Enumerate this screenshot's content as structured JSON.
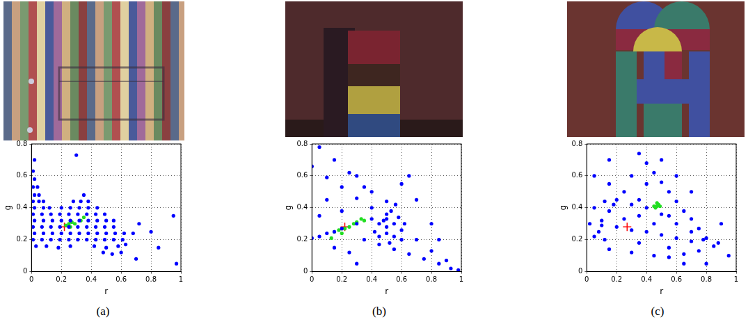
{
  "chart_data": [
    {
      "type": "scatter",
      "caption": "(a)",
      "x_label": "r",
      "y_label": "g",
      "xlim": [
        0,
        1
      ],
      "ylim": [
        0,
        0.8
      ],
      "xticks": [
        0,
        0.2,
        0.4,
        0.6,
        0.8,
        1
      ],
      "yticks": [
        0,
        0.2,
        0.4,
        0.6,
        0.8
      ],
      "grid": true,
      "series": [
        {
          "color": "#0000ff",
          "marker": "dot",
          "points": [
            [
              0.48,
              0.12
            ],
            [
              0.54,
              0.11
            ],
            [
              0.6,
              0.12
            ],
            [
              0.03,
              0.16
            ],
            [
              0.1,
              0.16
            ],
            [
              0.18,
              0.15
            ],
            [
              0.26,
              0.16
            ],
            [
              0.42,
              0.16
            ],
            [
              0.5,
              0.15
            ],
            [
              0.58,
              0.16
            ],
            [
              0.63,
              0.17
            ],
            [
              0.01,
              0.2
            ],
            [
              0.07,
              0.2
            ],
            [
              0.13,
              0.2
            ],
            [
              0.19,
              0.2
            ],
            [
              0.25,
              0.2
            ],
            [
              0.31,
              0.2
            ],
            [
              0.37,
              0.2
            ],
            [
              0.43,
              0.2
            ],
            [
              0.49,
              0.2
            ],
            [
              0.55,
              0.2
            ],
            [
              0.61,
              0.2
            ],
            [
              0.02,
              0.24
            ],
            [
              0.08,
              0.24
            ],
            [
              0.14,
              0.24
            ],
            [
              0.2,
              0.24
            ],
            [
              0.26,
              0.24
            ],
            [
              0.32,
              0.24
            ],
            [
              0.38,
              0.24
            ],
            [
              0.44,
              0.24
            ],
            [
              0.5,
              0.24
            ],
            [
              0.56,
              0.24
            ],
            [
              0.62,
              0.24
            ],
            [
              0.68,
              0.24
            ],
            [
              0.01,
              0.28
            ],
            [
              0.07,
              0.28
            ],
            [
              0.13,
              0.28
            ],
            [
              0.19,
              0.28
            ],
            [
              0.25,
              0.28
            ],
            [
              0.31,
              0.28
            ],
            [
              0.37,
              0.28
            ],
            [
              0.43,
              0.28
            ],
            [
              0.49,
              0.28
            ],
            [
              0.55,
              0.28
            ],
            [
              0.02,
              0.32
            ],
            [
              0.08,
              0.32
            ],
            [
              0.14,
              0.32
            ],
            [
              0.2,
              0.32
            ],
            [
              0.26,
              0.32
            ],
            [
              0.32,
              0.32
            ],
            [
              0.38,
              0.32
            ],
            [
              0.44,
              0.32
            ],
            [
              0.5,
              0.32
            ],
            [
              0.55,
              0.32
            ],
            [
              0.01,
              0.36
            ],
            [
              0.07,
              0.36
            ],
            [
              0.13,
              0.36
            ],
            [
              0.19,
              0.36
            ],
            [
              0.25,
              0.36
            ],
            [
              0.31,
              0.36
            ],
            [
              0.37,
              0.36
            ],
            [
              0.43,
              0.36
            ],
            [
              0.49,
              0.36
            ],
            [
              0.02,
              0.4
            ],
            [
              0.08,
              0.4
            ],
            [
              0.12,
              0.4
            ],
            [
              0.2,
              0.4
            ],
            [
              0.26,
              0.4
            ],
            [
              0.32,
              0.4
            ],
            [
              0.38,
              0.4
            ],
            [
              0.44,
              0.4
            ],
            [
              0.01,
              0.44
            ],
            [
              0.05,
              0.44
            ],
            [
              0.08,
              0.44
            ],
            [
              0.28,
              0.44
            ],
            [
              0.33,
              0.44
            ],
            [
              0.38,
              0.44
            ],
            [
              0.02,
              0.48
            ],
            [
              0.05,
              0.48
            ],
            [
              0.35,
              0.48
            ],
            [
              0.01,
              0.53
            ],
            [
              0.04,
              0.53
            ],
            [
              0.02,
              0.58
            ],
            [
              0.01,
              0.63
            ],
            [
              0.02,
              0.7
            ],
            [
              0.3,
              0.73
            ],
            [
              0.95,
              0.35
            ],
            [
              0.97,
              0.05
            ],
            [
              0.8,
              0.25
            ],
            [
              0.72,
              0.3
            ],
            [
              0.85,
              0.15
            ],
            [
              0.7,
              0.08
            ]
          ]
        },
        {
          "color": "#22dd22",
          "marker": "dot",
          "points": [
            [
              0.23,
              0.29
            ],
            [
              0.25,
              0.3
            ],
            [
              0.27,
              0.31
            ],
            [
              0.29,
              0.3
            ],
            [
              0.26,
              0.28
            ],
            [
              0.33,
              0.32
            ],
            [
              0.35,
              0.34
            ]
          ]
        },
        {
          "color": "#ff0000",
          "marker": "plus",
          "points": [
            [
              0.22,
              0.28
            ]
          ]
        }
      ]
    },
    {
      "type": "scatter",
      "caption": "(b)",
      "x_label": "r",
      "y_label": "g",
      "xlim": [
        0,
        1
      ],
      "ylim": [
        0,
        0.8
      ],
      "xticks": [
        0,
        0.2,
        0.4,
        0.6,
        0.8,
        1
      ],
      "yticks": [
        0,
        0.2,
        0.4,
        0.6,
        0.8
      ],
      "grid": true,
      "series": [
        {
          "color": "#0000ff",
          "marker": "dot",
          "points": [
            [
              0,
              0.66
            ],
            [
              0.1,
              0.59
            ],
            [
              0.2,
              0.53
            ],
            [
              0.3,
              0.46
            ],
            [
              0.4,
              0.4
            ],
            [
              0.5,
              0.33
            ],
            [
              0.6,
              0.26
            ],
            [
              0.7,
              0.2
            ],
            [
              0.8,
              0.13
            ],
            [
              0.9,
              0.07
            ],
            [
              0.98,
              0.01
            ],
            [
              0.05,
              0.78
            ],
            [
              0.15,
              0.7
            ],
            [
              0.25,
              0.62
            ],
            [
              0.35,
              0.53
            ],
            [
              0,
              0.21
            ],
            [
              0.05,
              0.22
            ],
            [
              0.1,
              0.24
            ],
            [
              0.15,
              0.25
            ],
            [
              0.2,
              0.27
            ],
            [
              0.3,
              0.3
            ],
            [
              0.4,
              0.33
            ],
            [
              0.5,
              0.36
            ],
            [
              0.35,
              0.2
            ],
            [
              0.45,
              0.17
            ],
            [
              0.55,
              0.14
            ],
            [
              0.65,
              0.11
            ],
            [
              0.75,
              0.08
            ],
            [
              0.85,
              0.05
            ],
            [
              0.93,
              0.02
            ],
            [
              0.45,
              0.3
            ],
            [
              0.5,
              0.28
            ],
            [
              0.55,
              0.3
            ],
            [
              0.5,
              0.24
            ],
            [
              0.45,
              0.22
            ],
            [
              0.55,
              0.22
            ],
            [
              0.6,
              0.2
            ],
            [
              0.52,
              0.18
            ],
            [
              0.42,
              0.25
            ],
            [
              0.58,
              0.34
            ],
            [
              0.62,
              0.3
            ],
            [
              0.48,
              0.32
            ],
            [
              0.53,
              0.38
            ],
            [
              0.56,
              0.42
            ],
            [
              0.5,
              0.44
            ],
            [
              0.1,
              0.45
            ],
            [
              0.2,
              0.38
            ],
            [
              0.3,
              0.6
            ],
            [
              0.6,
              0.55
            ],
            [
              0.7,
              0.45
            ],
            [
              0.65,
              0.6
            ],
            [
              0.15,
              0.15
            ],
            [
              0.25,
              0.12
            ],
            [
              0.3,
              0.05
            ],
            [
              0.05,
              0.35
            ],
            [
              0.4,
              0.5
            ],
            [
              0.8,
              0.3
            ],
            [
              0.85,
              0.2
            ]
          ]
        },
        {
          "color": "#22dd22",
          "marker": "dot",
          "points": [
            [
              0.15,
              0.25
            ],
            [
              0.18,
              0.26
            ],
            [
              0.22,
              0.27
            ],
            [
              0.25,
              0.28
            ],
            [
              0.28,
              0.3
            ],
            [
              0.3,
              0.31
            ],
            [
              0.33,
              0.33
            ],
            [
              0.2,
              0.24
            ],
            [
              0.13,
              0.21
            ],
            [
              0.35,
              0.32
            ]
          ]
        },
        {
          "color": "#ff0000",
          "marker": "plus",
          "points": [
            [
              0.22,
              0.28
            ]
          ]
        }
      ]
    },
    {
      "type": "scatter",
      "caption": "(c)",
      "x_label": "r",
      "y_label": "g",
      "xlim": [
        0,
        1
      ],
      "ylim": [
        0,
        0.8
      ],
      "xticks": [
        0,
        0.2,
        0.4,
        0.6,
        0.8,
        1
      ],
      "yticks": [
        0,
        0.2,
        0.4,
        0.6,
        0.8
      ],
      "grid": true,
      "series": [
        {
          "color": "#0000ff",
          "marker": "dot",
          "points": [
            [
              0.35,
              0.74
            ],
            [
              0.4,
              0.68
            ],
            [
              0.45,
              0.62
            ],
            [
              0.5,
              0.56
            ],
            [
              0.55,
              0.5
            ],
            [
              0.6,
              0.44
            ],
            [
              0.65,
              0.38
            ],
            [
              0.7,
              0.33
            ],
            [
              0.75,
              0.27
            ],
            [
              0.8,
              0.21
            ],
            [
              0.85,
              0.16
            ],
            [
              0.2,
              0.45
            ],
            [
              0.3,
              0.42
            ],
            [
              0.4,
              0.4
            ],
            [
              0.5,
              0.36
            ],
            [
              0.6,
              0.3
            ],
            [
              0.7,
              0.25
            ],
            [
              0.78,
              0.2
            ],
            [
              0.02,
              0.3
            ],
            [
              0.1,
              0.29
            ],
            [
              0.2,
              0.28
            ],
            [
              0.3,
              0.26
            ],
            [
              0.4,
              0.25
            ],
            [
              0.5,
              0.23
            ],
            [
              0.6,
              0.21
            ],
            [
              0.7,
              0.19
            ],
            [
              0.15,
              0.14
            ],
            [
              0.3,
              0.12
            ],
            [
              0.45,
              0.1
            ],
            [
              0.55,
              0.09
            ],
            [
              0.65,
              0.11
            ],
            [
              0.75,
              0.13
            ],
            [
              0.15,
              0.55
            ],
            [
              0.25,
              0.5
            ],
            [
              0.35,
              0.45
            ],
            [
              0.05,
              0.22
            ],
            [
              0.08,
              0.25
            ],
            [
              0.12,
              0.2
            ],
            [
              0.1,
              0.32
            ],
            [
              0.15,
              0.38
            ],
            [
              0.05,
              0.4
            ],
            [
              0.18,
              0.42
            ],
            [
              0.12,
              0.44
            ],
            [
              0.05,
              0.6
            ],
            [
              0.15,
              0.7
            ],
            [
              0.5,
              0.7
            ],
            [
              0.6,
              0.6
            ],
            [
              0.9,
              0.3
            ],
            [
              0.95,
              0.1
            ],
            [
              0.88,
              0.18
            ],
            [
              0.3,
              0.6
            ],
            [
              0.4,
              0.55
            ],
            [
              0.25,
              0.33
            ],
            [
              0.35,
              0.35
            ],
            [
              0.45,
              0.3
            ],
            [
              0.55,
              0.15
            ],
            [
              0.35,
              0.18
            ],
            [
              0.65,
              0.05
            ],
            [
              0.7,
              0.5
            ],
            [
              0.55,
              0.35
            ],
            [
              0.8,
              0.05
            ]
          ]
        },
        {
          "color": "#22dd22",
          "marker": "dot",
          "points": [
            [
              0.46,
              0.4
            ],
            [
              0.47,
              0.41
            ],
            [
              0.48,
              0.42
            ],
            [
              0.49,
              0.41
            ],
            [
              0.47,
              0.43
            ],
            [
              0.45,
              0.41
            ]
          ]
        },
        {
          "color": "#ff0000",
          "marker": "plus",
          "points": [
            [
              0.27,
              0.28
            ]
          ]
        }
      ]
    }
  ]
}
